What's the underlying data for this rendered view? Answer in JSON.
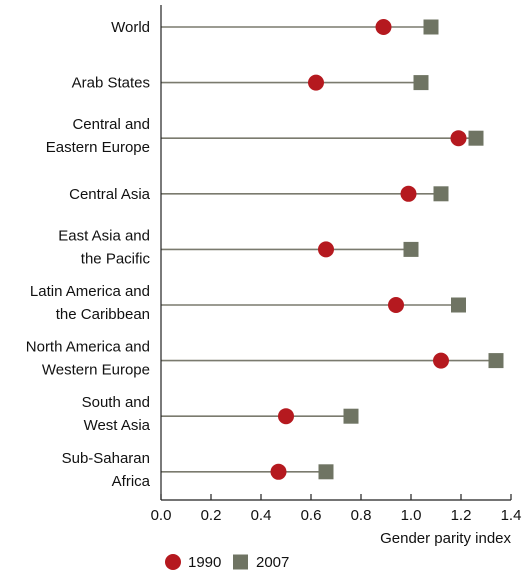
{
  "chart_data": {
    "type": "dot-range",
    "orientation": "horizontal",
    "title": "",
    "xlabel": "Gender parity index",
    "ylabel": "",
    "xlim": [
      0.0,
      1.4
    ],
    "xticks": [
      "0.0",
      "0.2",
      "0.4",
      "0.6",
      "0.8",
      "1.0",
      "1.2",
      "1.4"
    ],
    "grid": false,
    "legend_position": "bottom-left",
    "categories": [
      [
        "World"
      ],
      [
        "Arab States"
      ],
      [
        "Central and",
        "Eastern Europe"
      ],
      [
        "Central Asia"
      ],
      [
        "East Asia and",
        "the Pacific"
      ],
      [
        "Latin America and",
        "the Caribbean"
      ],
      [
        "North America and",
        "Western Europe"
      ],
      [
        "South and",
        "West Asia"
      ],
      [
        "Sub-Saharan",
        "Africa"
      ]
    ],
    "series": [
      {
        "name": "1990",
        "marker": "circle",
        "color": "#b5191f",
        "values": [
          0.89,
          0.62,
          1.19,
          0.99,
          0.66,
          0.94,
          1.12,
          0.5,
          0.47
        ]
      },
      {
        "name": "2007",
        "marker": "square",
        "color": "#6f7463",
        "values": [
          1.08,
          1.04,
          1.26,
          1.12,
          1.0,
          1.19,
          1.34,
          0.76,
          0.66
        ]
      }
    ],
    "colors": {
      "line": "#7a7a6e",
      "axis": "#222222"
    }
  }
}
